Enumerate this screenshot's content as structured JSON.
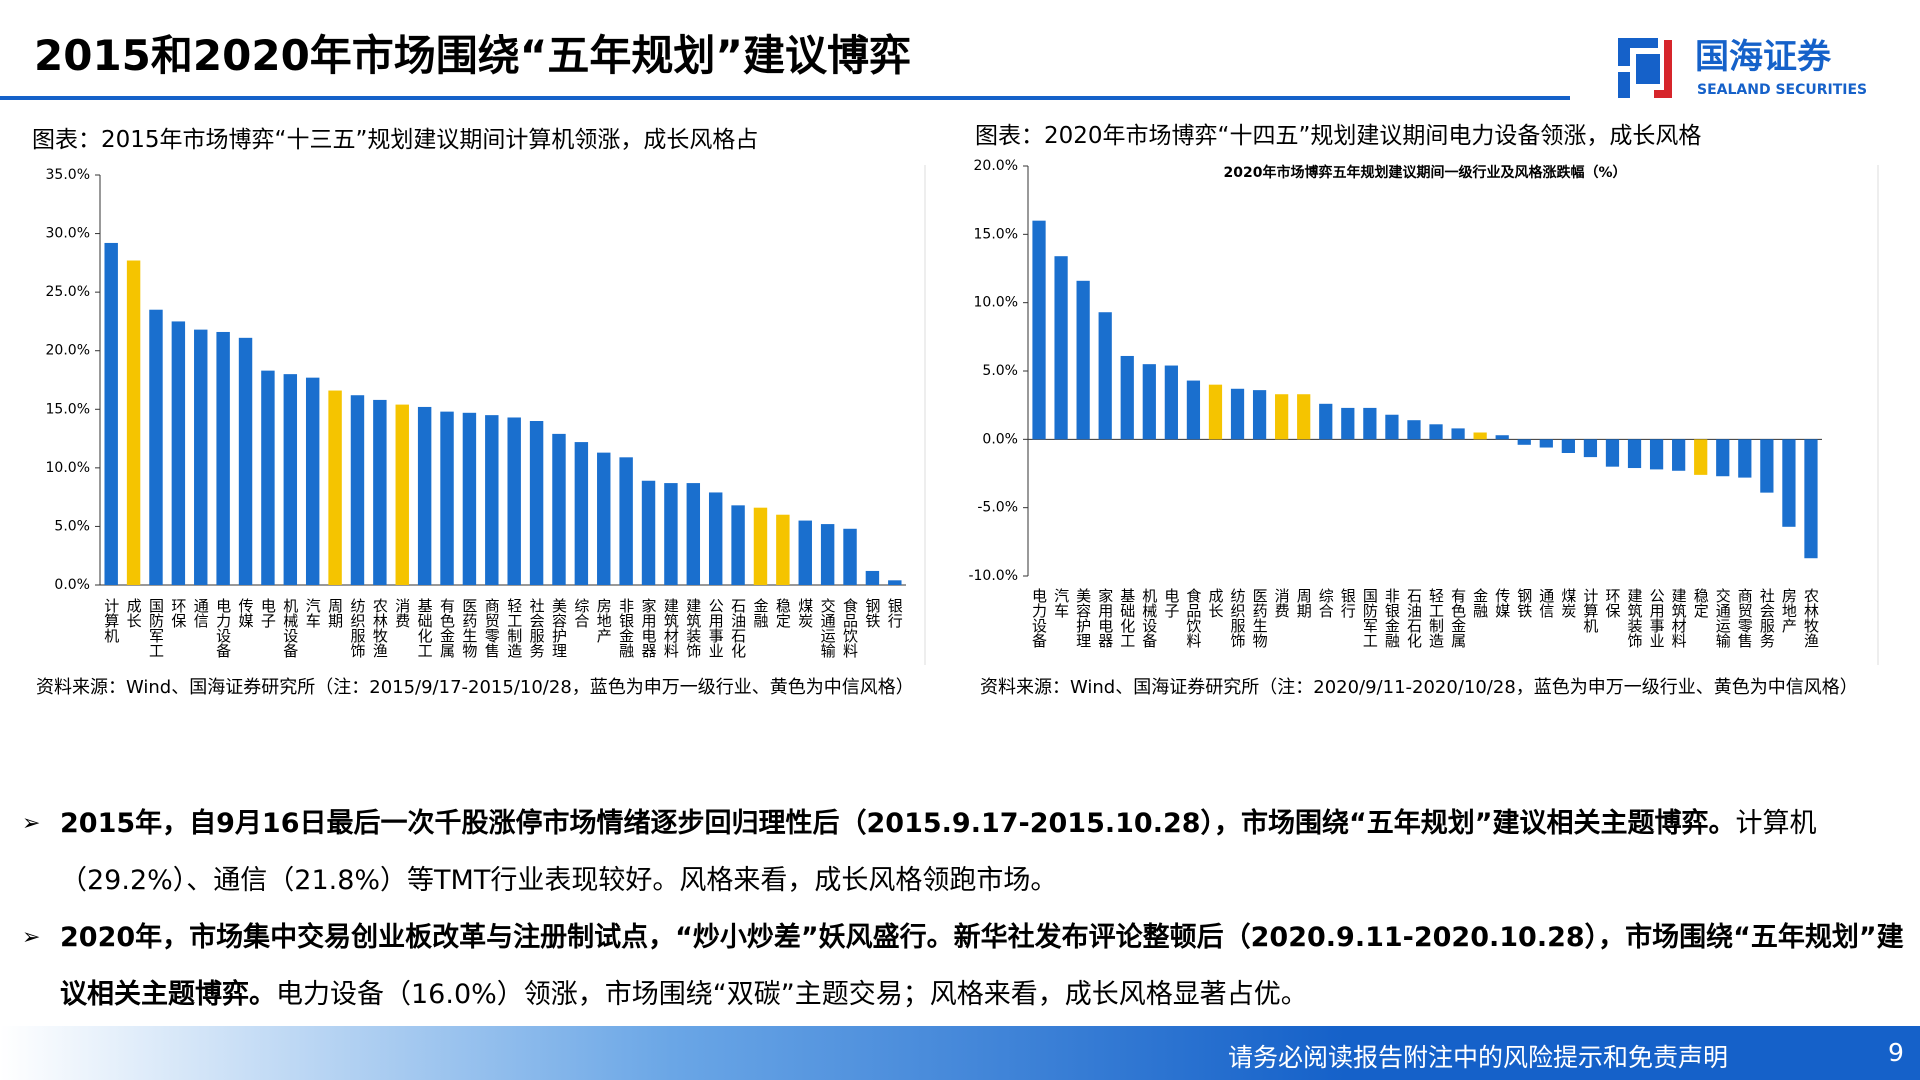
{
  "header": {
    "title": "2015和2020年市场围绕“五年规划”建议博弈",
    "logo_cn": "国海证券",
    "logo_en": "SEALAND SECURITIES"
  },
  "chart_data": [
    {
      "type": "bar",
      "caption": "图表：2015年市场博弈“十三五”规划建议期间计算机领涨，成长风格占",
      "categories": [
        "计算机",
        "成长",
        "国防军工",
        "环保",
        "通信",
        "电力设备",
        "传媒",
        "电子",
        "机械设备",
        "汽车",
        "周期",
        "纺织服饰",
        "农林牧渔",
        "消费",
        "基础化工",
        "有色金属",
        "医药生物",
        "商贸零售",
        "轻工制造",
        "社会服务",
        "美容护理",
        "综合",
        "房地产",
        "非银金融",
        "家用电器",
        "建筑材料",
        "建筑装饰",
        "公用事业",
        "石油石化",
        "金融",
        "稳定",
        "煤炭",
        "交通运输",
        "食品饮料",
        "钢铁",
        "银行"
      ],
      "values": [
        29.2,
        27.7,
        23.5,
        22.5,
        21.8,
        21.6,
        21.1,
        18.3,
        18.0,
        17.7,
        16.6,
        16.2,
        15.8,
        15.4,
        15.2,
        14.8,
        14.7,
        14.5,
        14.3,
        14.0,
        12.9,
        12.2,
        11.3,
        10.9,
        8.9,
        8.7,
        8.7,
        7.9,
        6.8,
        6.6,
        6.0,
        5.5,
        5.2,
        4.8,
        1.2,
        0.4
      ],
      "colors": [
        "#1a6fce",
        "#f5c400",
        "#1a6fce",
        "#1a6fce",
        "#1a6fce",
        "#1a6fce",
        "#1a6fce",
        "#1a6fce",
        "#1a6fce",
        "#1a6fce",
        "#f5c400",
        "#1a6fce",
        "#1a6fce",
        "#f5c400",
        "#1a6fce",
        "#1a6fce",
        "#1a6fce",
        "#1a6fce",
        "#1a6fce",
        "#1a6fce",
        "#1a6fce",
        "#1a6fce",
        "#1a6fce",
        "#1a6fce",
        "#1a6fce",
        "#1a6fce",
        "#1a6fce",
        "#1a6fce",
        "#1a6fce",
        "#f5c400",
        "#f5c400",
        "#1a6fce",
        "#1a6fce",
        "#1a6fce",
        "#1a6fce",
        "#1a6fce"
      ],
      "ylim": [
        0,
        35
      ],
      "yticks": [
        {
          "value": 0,
          "label": "0.0%"
        },
        {
          "value": 5,
          "label": "5.0%"
        },
        {
          "value": 10,
          "label": "10.0%"
        },
        {
          "value": 15,
          "label": "15.0%"
        },
        {
          "value": 20,
          "label": "20.0%"
        },
        {
          "value": 25,
          "label": "25.0%"
        },
        {
          "value": 30,
          "label": "30.0%"
        },
        {
          "value": 35,
          "label": "35.0%"
        }
      ],
      "source": "资料来源：Wind、国海证券研究所（注：2015/9/17-2015/10/28，蓝色为申万一级行业、黄色为中信风格）"
    },
    {
      "type": "bar",
      "caption": "图表：2020年市场博弈“十四五”规划建议期间电力设备领涨，成长风格",
      "title": "2020年市场博弈五年规划建议期间一级行业及风格涨跌幅（%）",
      "categories": [
        "电力设备",
        "汽车",
        "美容护理",
        "家用电器",
        "基础化工",
        "机械设备",
        "电子",
        "食品饮料",
        "成长",
        "纺织服饰",
        "医药生物",
        "消费",
        "周期",
        "综合",
        "银行",
        "国防军工",
        "非银金融",
        "石油石化",
        "轻工制造",
        "有色金属",
        "金融",
        "传媒",
        "钢铁",
        "通信",
        "煤炭",
        "计算机",
        "环保",
        "建筑装饰",
        "公用事业",
        "建筑材料",
        "稳定",
        "交通运输",
        "商贸零售",
        "社会服务",
        "房地产",
        "农林牧渔"
      ],
      "values": [
        16.0,
        13.4,
        11.6,
        9.3,
        6.1,
        5.5,
        5.4,
        4.3,
        4.0,
        3.7,
        3.6,
        3.3,
        3.3,
        2.6,
        2.3,
        2.3,
        1.8,
        1.4,
        1.1,
        0.8,
        0.5,
        0.3,
        -0.4,
        -0.6,
        -1.0,
        -1.3,
        -2.0,
        -2.1,
        -2.2,
        -2.3,
        -2.6,
        -2.7,
        -2.8,
        -3.9,
        -6.4,
        -8.7
      ],
      "colors": [
        "#1a6fce",
        "#1a6fce",
        "#1a6fce",
        "#1a6fce",
        "#1a6fce",
        "#1a6fce",
        "#1a6fce",
        "#1a6fce",
        "#f5c400",
        "#1a6fce",
        "#1a6fce",
        "#f5c400",
        "#f5c400",
        "#1a6fce",
        "#1a6fce",
        "#1a6fce",
        "#1a6fce",
        "#1a6fce",
        "#1a6fce",
        "#1a6fce",
        "#f5c400",
        "#1a6fce",
        "#1a6fce",
        "#1a6fce",
        "#1a6fce",
        "#1a6fce",
        "#1a6fce",
        "#1a6fce",
        "#1a6fce",
        "#1a6fce",
        "#f5c400",
        "#1a6fce",
        "#1a6fce",
        "#1a6fce",
        "#1a6fce",
        "#1a6fce"
      ],
      "ylim": [
        -10,
        20
      ],
      "yticks": [
        {
          "value": -10,
          "label": "-10.0%"
        },
        {
          "value": -5,
          "label": "-5.0%"
        },
        {
          "value": 0,
          "label": "0.0%"
        },
        {
          "value": 5,
          "label": "5.0%"
        },
        {
          "value": 10,
          "label": "10.0%"
        },
        {
          "value": 15,
          "label": "15.0%"
        },
        {
          "value": 20,
          "label": "20.0%"
        }
      ],
      "source": "资料来源：Wind、国海证券研究所（注：2020/9/11-2020/10/28，蓝色为申万一级行业、黄色为中信风格）"
    }
  ],
  "bullets": [
    {
      "bold": "2015年，自9月16日最后一次千股涨停市场情绪逐步回归理性后（2015.9.17-2015.10.28），市场围绕“五年规划”建议相关主题博弈。",
      "text": "计算机（29.2%）、通信（21.8%）等TMT行业表现较好。风格来看，成长风格领跑市场。"
    },
    {
      "bold": "2020年，市场集中交易创业板改革与注册制试点，“炒小炒差”妖风盛行。新华社发布评论整顿后（2020.9.11-2020.10.28），市场围绕“五年规划”建议相关主题博弈。",
      "text": "电力设备（16.0%）领涨，市场围绕“双碳”主题交易；风格来看，成长风格显著占优。"
    }
  ],
  "footer": {
    "disclaimer": "请务必阅读报告附注中的风险提示和免责声明",
    "page": "9"
  }
}
